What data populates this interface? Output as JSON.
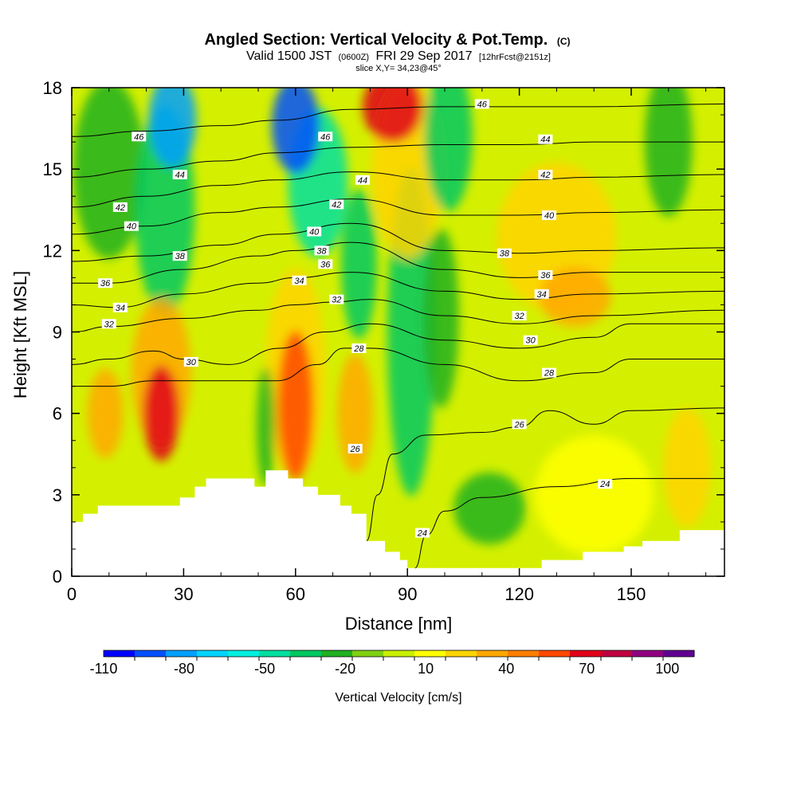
{
  "chart_data": {
    "type": "heatmap",
    "title": "Angled Section: Vertical Velocity & Pot.Temp.",
    "title_suffix": "(C)",
    "subtitle_main": "Valid 1500 JST",
    "subtitle_utc": "(0600Z)",
    "subtitle_date": "FRI 29 Sep 2017",
    "subtitle_fcst": "[12hrFcst@2151z]",
    "slice_label": "slice X,Y= 34,23@45°",
    "xlabel": "Distance [nm]",
    "ylabel": "Height [Kft MSL]",
    "xlim": [
      0,
      175
    ],
    "ylim": [
      0,
      18
    ],
    "x_ticks": [
      0,
      30,
      60,
      90,
      120,
      150
    ],
    "y_ticks": [
      0,
      3,
      6,
      9,
      12,
      15,
      18
    ],
    "x_tick_labels": [
      "0",
      "30",
      "60",
      "90",
      "120",
      "150"
    ],
    "y_tick_labels": [
      "0",
      "3",
      "6",
      "9",
      "12",
      "15",
      "18"
    ],
    "colorbar": {
      "label": "Vertical Velocity [cm/s]",
      "tick_labels": [
        "-110",
        "-80",
        "-50",
        "-20",
        "10",
        "40",
        "70",
        "100"
      ],
      "tick_values": [
        -110,
        -80,
        -50,
        -20,
        10,
        40,
        70,
        100
      ],
      "colors": [
        "#0000ff",
        "#0050ff",
        "#00a0ff",
        "#00d4ff",
        "#00f0e0",
        "#00e0a0",
        "#00c860",
        "#20b020",
        "#80d010",
        "#c8f000",
        "#ffff00",
        "#ffd400",
        "#ffa800",
        "#ff7e00",
        "#ff4800",
        "#e00018",
        "#c00040",
        "#900080",
        "#600090"
      ]
    },
    "terrain": [
      [
        0,
        2.0
      ],
      [
        3,
        2.3
      ],
      [
        7,
        2.6
      ],
      [
        29,
        2.9
      ],
      [
        33,
        3.3
      ],
      [
        36,
        3.6
      ],
      [
        49,
        3.3
      ],
      [
        52,
        3.9
      ],
      [
        58,
        3.6
      ],
      [
        62,
        3.3
      ],
      [
        66,
        3.0
      ],
      [
        72,
        2.6
      ],
      [
        75,
        2.3
      ],
      [
        79,
        1.3
      ],
      [
        84,
        0.9
      ],
      [
        88,
        0.6
      ],
      [
        90,
        0.3
      ],
      [
        126,
        0.6
      ],
      [
        137,
        0.9
      ],
      [
        148,
        1.1
      ],
      [
        153,
        1.3
      ],
      [
        163,
        1.7
      ],
      [
        175,
        1.7
      ]
    ],
    "velocity_features": [
      {
        "x": 24,
        "y": 6.0,
        "sx": 3,
        "sy": 1.6,
        "value": 75
      },
      {
        "x": 24,
        "y": 7.5,
        "sx": 5,
        "sy": 2.5,
        "value": 40
      },
      {
        "x": 9,
        "y": 6.0,
        "sx": 3,
        "sy": 1.5,
        "value": 30
      },
      {
        "x": 60,
        "y": 6.3,
        "sx": 3,
        "sy": 2.5,
        "value": 55
      },
      {
        "x": 60,
        "y": 7.5,
        "sx": 5,
        "sy": 3.5,
        "value": 25
      },
      {
        "x": 76,
        "y": 6.0,
        "sx": 3,
        "sy": 2.0,
        "value": 30
      },
      {
        "x": 86,
        "y": 17.3,
        "sx": 5,
        "sy": 1.2,
        "value": 65
      },
      {
        "x": 90,
        "y": 15.0,
        "sx": 6,
        "sy": 3.0,
        "value": 25
      },
      {
        "x": 135,
        "y": 10.3,
        "sx": 6,
        "sy": 1.0,
        "value": 35
      },
      {
        "x": 130,
        "y": 12.5,
        "sx": 10,
        "sy": 2.5,
        "value": 20
      },
      {
        "x": 165,
        "y": 4.0,
        "sx": 4,
        "sy": 2.0,
        "value": 20
      },
      {
        "x": 140,
        "y": 3.0,
        "sx": 10,
        "sy": 2.0,
        "value": 10
      },
      {
        "x": 27,
        "y": 16.8,
        "sx": 4,
        "sy": 1.6,
        "value": -85
      },
      {
        "x": 25,
        "y": 13.5,
        "sx": 5,
        "sy": 3.5,
        "value": -38
      },
      {
        "x": 60,
        "y": 16.6,
        "sx": 4,
        "sy": 1.6,
        "value": -95
      },
      {
        "x": 66,
        "y": 14.5,
        "sx": 5,
        "sy": 2.5,
        "value": -50
      },
      {
        "x": 77,
        "y": 11.5,
        "sx": 3,
        "sy": 2.5,
        "value": -35
      },
      {
        "x": 91,
        "y": 9.0,
        "sx": 4,
        "sy": 5.5,
        "value": -30
      },
      {
        "x": 101,
        "y": 16.2,
        "sx": 4,
        "sy": 2.5,
        "value": -30
      },
      {
        "x": 10,
        "y": 15.0,
        "sx": 6,
        "sy": 3.0,
        "value": -25
      },
      {
        "x": 160,
        "y": 16.0,
        "sx": 4,
        "sy": 2.5,
        "value": -25
      },
      {
        "x": 99,
        "y": 9.5,
        "sx": 3,
        "sy": 3.0,
        "value": -25
      },
      {
        "x": 112,
        "y": 2.5,
        "sx": 6,
        "sy": 1.2,
        "value": -22
      },
      {
        "x": 52,
        "y": 5.5,
        "sx": 1.5,
        "sy": 2.0,
        "value": -28
      }
    ],
    "theta_contours": [
      {
        "value": "24",
        "points": [
          [
            92,
            0.3
          ],
          [
            95,
            1.5
          ],
          [
            100,
            2.4
          ],
          [
            110,
            2.9
          ],
          [
            130,
            3.3
          ],
          [
            150,
            3.6
          ],
          [
            175,
            3.6
          ]
        ],
        "labels": [
          [
            94,
            1.6
          ],
          [
            143,
            3.4
          ]
        ]
      },
      {
        "value": "26",
        "points": [
          [
            79,
            1.3
          ],
          [
            82,
            3.0
          ],
          [
            86,
            4.5
          ],
          [
            95,
            5.2
          ],
          [
            110,
            5.3
          ],
          [
            120,
            5.5
          ],
          [
            128,
            6.1
          ],
          [
            140,
            5.6
          ],
          [
            150,
            6.1
          ],
          [
            175,
            6.2
          ]
        ],
        "labels": [
          [
            76,
            4.7
          ],
          [
            120,
            5.6
          ]
        ]
      },
      {
        "value": "28",
        "points": [
          [
            0,
            7.0
          ],
          [
            10,
            7.0
          ],
          [
            22,
            7.2
          ],
          [
            40,
            7.2
          ],
          [
            55,
            7.2
          ],
          [
            66,
            7.8
          ],
          [
            73,
            8.4
          ],
          [
            80,
            8.4
          ],
          [
            100,
            7.8
          ],
          [
            120,
            7.2
          ],
          [
            140,
            7.5
          ],
          [
            150,
            8.0
          ],
          [
            175,
            8.0
          ]
        ],
        "labels": [
          [
            77,
            8.4
          ],
          [
            128,
            7.5
          ]
        ]
      },
      {
        "value": "30",
        "points": [
          [
            0,
            7.8
          ],
          [
            10,
            8.0
          ],
          [
            22,
            8.3
          ],
          [
            30,
            8.0
          ],
          [
            42,
            7.8
          ],
          [
            56,
            8.4
          ],
          [
            68,
            9.0
          ],
          [
            80,
            9.3
          ],
          [
            100,
            8.7
          ],
          [
            120,
            8.4
          ],
          [
            140,
            8.8
          ],
          [
            150,
            9.3
          ],
          [
            175,
            9.3
          ]
        ],
        "labels": [
          [
            32,
            7.9
          ],
          [
            123,
            8.7
          ]
        ]
      },
      {
        "value": "32",
        "points": [
          [
            0,
            9.0
          ],
          [
            10,
            9.2
          ],
          [
            30,
            9.5
          ],
          [
            50,
            9.8
          ],
          [
            60,
            10.0
          ],
          [
            70,
            10.1
          ],
          [
            80,
            10.2
          ],
          [
            100,
            9.6
          ],
          [
            120,
            9.3
          ],
          [
            140,
            9.6
          ],
          [
            175,
            9.8
          ]
        ],
        "labels": [
          [
            10,
            9.3
          ],
          [
            71,
            10.2
          ],
          [
            120,
            9.6
          ]
        ]
      },
      {
        "value": "34",
        "points": [
          [
            0,
            10.0
          ],
          [
            12,
            9.9
          ],
          [
            30,
            10.4
          ],
          [
            50,
            10.8
          ],
          [
            60,
            11.0
          ],
          [
            75,
            11.2
          ],
          [
            100,
            10.5
          ],
          [
            120,
            10.2
          ],
          [
            140,
            10.4
          ],
          [
            175,
            10.5
          ]
        ],
        "labels": [
          [
            13,
            9.9
          ],
          [
            61,
            10.9
          ],
          [
            126,
            10.4
          ]
        ]
      },
      {
        "value": "36",
        "points": [
          [
            0,
            10.8
          ],
          [
            10,
            10.8
          ],
          [
            30,
            11.3
          ],
          [
            50,
            11.8
          ],
          [
            60,
            12.0
          ],
          [
            75,
            12.3
          ],
          [
            100,
            11.3
          ],
          [
            120,
            11.0
          ],
          [
            140,
            11.2
          ],
          [
            175,
            11.2
          ]
        ],
        "labels": [
          [
            9,
            10.8
          ],
          [
            68,
            11.5
          ],
          [
            127,
            11.1
          ]
        ]
      },
      {
        "value": "38",
        "points": [
          [
            0,
            11.6
          ],
          [
            20,
            11.8
          ],
          [
            40,
            12.2
          ],
          [
            55,
            12.6
          ],
          [
            75,
            13.0
          ],
          [
            100,
            12.0
          ],
          [
            120,
            11.9
          ],
          [
            140,
            12.0
          ],
          [
            175,
            12.1
          ]
        ],
        "labels": [
          [
            29,
            11.8
          ],
          [
            67,
            12.0
          ],
          [
            116,
            11.9
          ]
        ]
      },
      {
        "value": "40",
        "points": [
          [
            0,
            12.6
          ],
          [
            20,
            12.9
          ],
          [
            40,
            13.4
          ],
          [
            55,
            13.6
          ],
          [
            75,
            13.9
          ],
          [
            100,
            13.3
          ],
          [
            120,
            13.3
          ],
          [
            140,
            13.4
          ],
          [
            175,
            13.5
          ]
        ],
        "labels": [
          [
            16,
            12.9
          ],
          [
            65,
            12.7
          ],
          [
            128,
            13.3
          ]
        ]
      },
      {
        "value": "42",
        "points": [
          [
            0,
            13.6
          ],
          [
            20,
            14.0
          ],
          [
            40,
            14.4
          ],
          [
            55,
            14.6
          ],
          [
            75,
            14.9
          ],
          [
            100,
            14.6
          ],
          [
            120,
            14.6
          ],
          [
            140,
            14.7
          ],
          [
            175,
            14.8
          ]
        ],
        "labels": [
          [
            13,
            13.6
          ],
          [
            71,
            13.7
          ],
          [
            127,
            14.8
          ]
        ]
      },
      {
        "value": "44",
        "points": [
          [
            0,
            14.7
          ],
          [
            20,
            15.0
          ],
          [
            40,
            15.3
          ],
          [
            55,
            15.6
          ],
          [
            75,
            15.8
          ],
          [
            100,
            15.9
          ],
          [
            120,
            15.9
          ],
          [
            140,
            16.0
          ],
          [
            175,
            16.0
          ]
        ],
        "labels": [
          [
            29,
            14.8
          ],
          [
            78,
            14.6
          ],
          [
            127,
            16.1
          ]
        ]
      },
      {
        "value": "46",
        "points": [
          [
            0,
            16.2
          ],
          [
            20,
            16.4
          ],
          [
            40,
            16.6
          ],
          [
            55,
            16.8
          ],
          [
            75,
            17.2
          ],
          [
            100,
            17.3
          ],
          [
            120,
            17.3
          ],
          [
            140,
            17.3
          ],
          [
            175,
            17.4
          ]
        ],
        "labels": [
          [
            18,
            16.2
          ],
          [
            68,
            16.2
          ],
          [
            110,
            17.4
          ]
        ]
      }
    ]
  }
}
